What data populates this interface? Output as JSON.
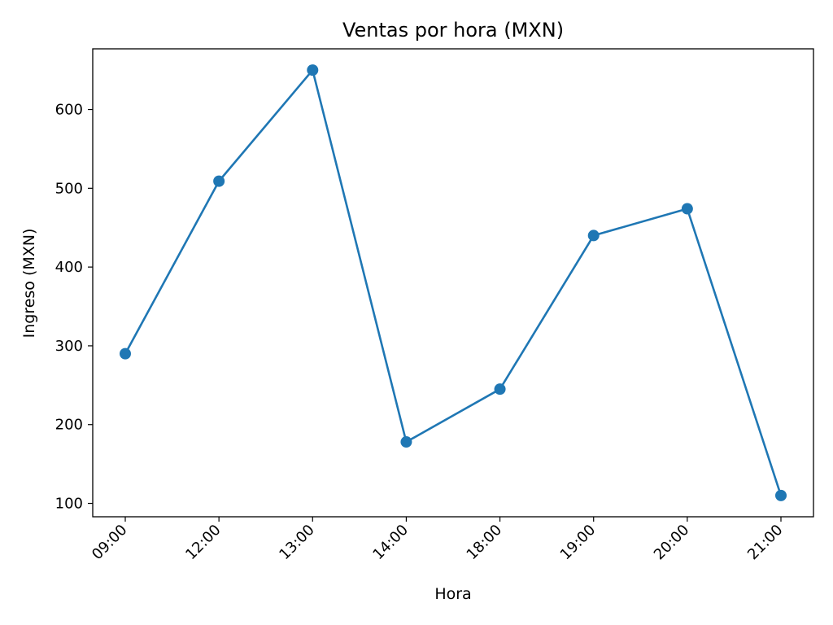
{
  "chart_data": {
    "type": "line",
    "title": "Ventas por hora (MXN)",
    "xlabel": "Hora",
    "ylabel": "Ingreso (MXN)",
    "categories": [
      "09:00",
      "12:00",
      "13:00",
      "14:00",
      "18:00",
      "19:00",
      "20:00",
      "21:00"
    ],
    "series": [
      {
        "values": [
          290,
          509,
          650,
          178,
          245,
          440,
          474,
          110
        ],
        "color": "#1f77b4",
        "marker": "circle"
      }
    ],
    "ylim": [
      83,
      677
    ],
    "yticks": [
      100,
      200,
      300,
      400,
      500,
      600
    ],
    "grid": false,
    "legend": "none"
  }
}
